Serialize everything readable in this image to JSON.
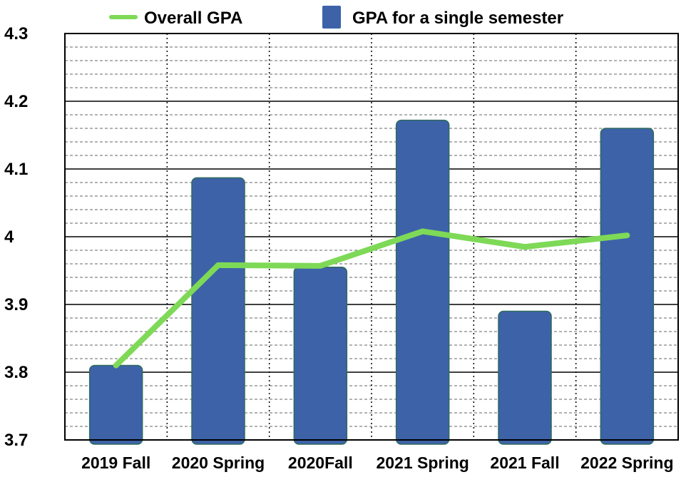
{
  "chart_data": {
    "type": "bar",
    "categories": [
      "2019 Fall",
      "2020 Spring",
      "2020Fall",
      "2021 Spring",
      "2021 Fall",
      "2022 Spring"
    ],
    "series": [
      {
        "name": "GPA for a single semester",
        "kind": "bar",
        "color": "#3d62a8",
        "values": [
          3.81,
          4.087,
          3.955,
          4.172,
          3.89,
          4.16
        ]
      },
      {
        "name": "Overall GPA",
        "kind": "line",
        "color": "#7ed957",
        "values": [
          3.81,
          3.958,
          3.957,
          4.008,
          3.985,
          4.002
        ]
      }
    ],
    "ylim": [
      3.7,
      4.3
    ],
    "yticks": [
      "3.7",
      "3.8",
      "3.9",
      "4",
      "4.1",
      "4.2",
      "4.3"
    ],
    "xlabel": "",
    "ylabel": "",
    "legend": {
      "placement": "top",
      "entries": [
        {
          "label": "Overall GPA",
          "marker": "line",
          "color": "#7ed957"
        },
        {
          "label": "GPA for a single semester",
          "marker": "square",
          "color": "#3d62a8"
        }
      ]
    },
    "grid": {
      "major": true,
      "minor_dashed": true,
      "vertical_dotted": true
    }
  }
}
